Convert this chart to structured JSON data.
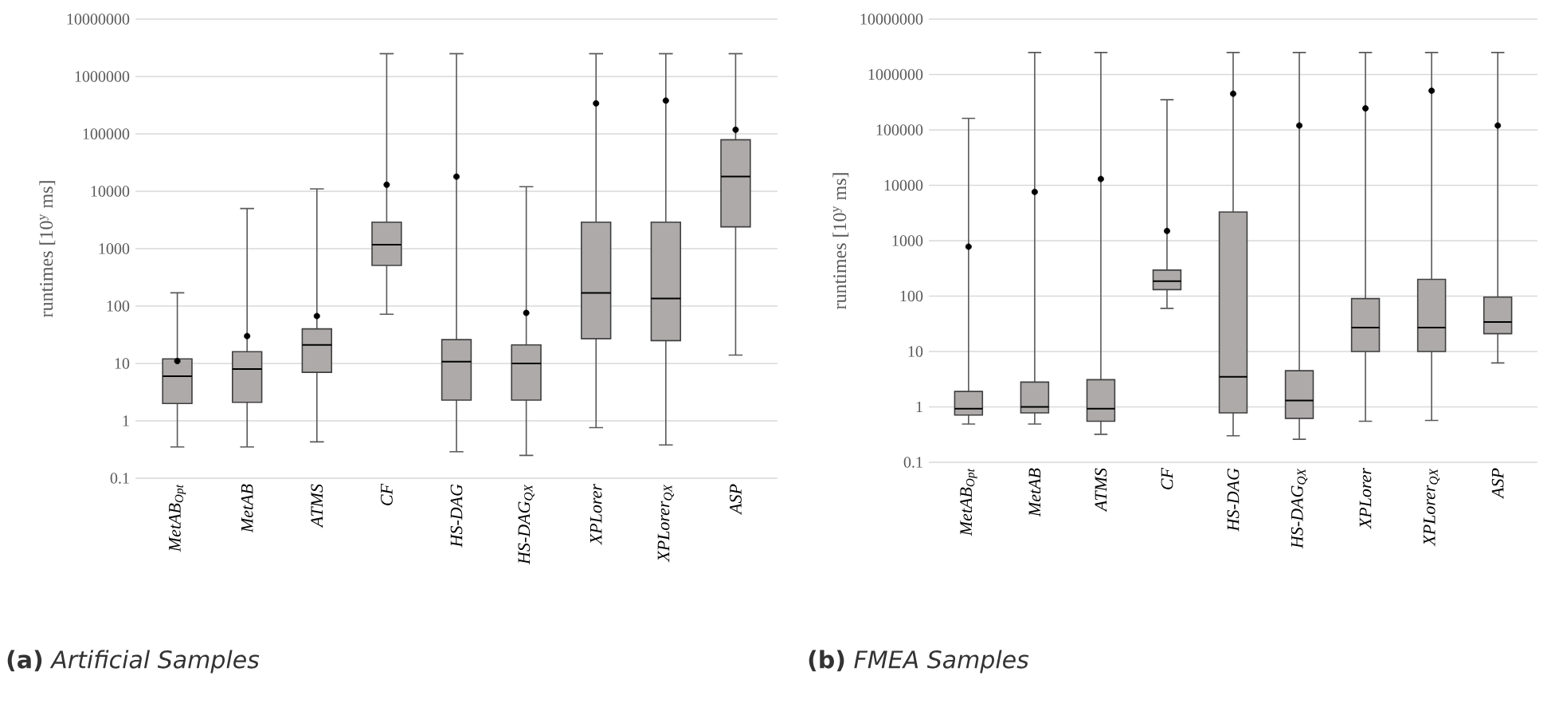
{
  "chart_data": [
    {
      "type": "box",
      "ylabel": "runtimes [10$^{y}$ ms]",
      "categories": [
        "MetAB$_{Opt}$",
        "MetAB",
        "ATMS",
        "CF",
        "HS-DAG",
        "HS-DAG$_{QX}$",
        "XPLorer",
        "XPLorer$_{QX}$",
        "ASP"
      ],
      "boxes": [
        {
          "low": 0.35,
          "q1": 2,
          "median": 6,
          "q3": 12,
          "high": 170,
          "mean": 11
        },
        {
          "low": 0.35,
          "q1": 2.1,
          "median": 8,
          "q3": 16,
          "high": 5000,
          "mean": 30
        },
        {
          "low": 0.43,
          "q1": 7,
          "median": 21,
          "q3": 40,
          "high": 11000,
          "mean": 67
        },
        {
          "low": 72,
          "q1": 510,
          "median": 1170,
          "q3": 2900,
          "high": 2500000,
          "mean": 13000
        },
        {
          "low": 0.29,
          "q1": 2.3,
          "median": 10.7,
          "q3": 26,
          "high": 2500000,
          "mean": 18000
        },
        {
          "low": 0.25,
          "q1": 2.3,
          "median": 10,
          "q3": 21,
          "high": 12000,
          "mean": 76
        },
        {
          "low": 0.76,
          "q1": 27,
          "median": 170,
          "q3": 2900,
          "high": 2500000,
          "mean": 340000
        },
        {
          "low": 0.38,
          "q1": 25,
          "median": 135,
          "q3": 2900,
          "high": 2500000,
          "mean": 380000
        },
        {
          "low": 14,
          "q1": 2400,
          "median": 18000,
          "q3": 79000,
          "high": 2500000,
          "mean": 118000
        }
      ],
      "color": "#aeaaaa",
      "log": true,
      "grid": "y",
      "ylim": [
        0.1,
        10000000
      ],
      "yticks": [
        0.1,
        1,
        10,
        100,
        1000,
        10000,
        100000,
        1000000,
        10000000
      ],
      "annotations": [
        "**(a)** *Artificial Samples*"
      ]
    },
    {
      "type": "box",
      "ylabel": "runtimes [10$^{y}$ ms]",
      "categories": [
        "MetAB$_{Opt}$",
        "MetAB",
        "ATMS",
        "CF",
        "HS-DAG",
        "HS-DAG$_{QX}$",
        "XPLorer",
        "XPLorer$_{QX}$",
        "ASP"
      ],
      "boxes": [
        {
          "low": 0.49,
          "q1": 0.71,
          "median": 0.93,
          "q3": 1.9,
          "high": 162000,
          "mean": 780
        },
        {
          "low": 0.49,
          "q1": 0.78,
          "median": 1.0,
          "q3": 2.8,
          "high": 2500000,
          "mean": 7600
        },
        {
          "low": 0.32,
          "q1": 0.55,
          "median": 0.93,
          "q3": 3.1,
          "high": 2500000,
          "mean": 13000
        },
        {
          "low": 60,
          "q1": 131,
          "median": 186,
          "q3": 295,
          "high": 350000,
          "mean": 1500
        },
        {
          "low": 0.3,
          "q1": 0.78,
          "median": 3.5,
          "q3": 3300,
          "high": 2500000,
          "mean": 450000
        },
        {
          "low": 0.26,
          "q1": 0.62,
          "median": 1.3,
          "q3": 4.5,
          "high": 2500000,
          "mean": 120000
        },
        {
          "low": 0.55,
          "q1": 10,
          "median": 27,
          "q3": 90,
          "high": 2500000,
          "mean": 245000
        },
        {
          "low": 0.57,
          "q1": 10,
          "median": 27,
          "q3": 200,
          "high": 2500000,
          "mean": 510000
        },
        {
          "low": 6.2,
          "q1": 21,
          "median": 34,
          "q3": 96,
          "high": 2500000,
          "mean": 120000
        }
      ],
      "color": "#aeaaaa",
      "log": true,
      "grid": "y",
      "ylim": [
        0.1,
        10000000
      ],
      "yticks": [
        0.1,
        1,
        10,
        100,
        1000,
        10000,
        100000,
        1000000,
        10000000
      ],
      "annotations": [
        "**(b)** *FMEA Samples*"
      ]
    }
  ]
}
